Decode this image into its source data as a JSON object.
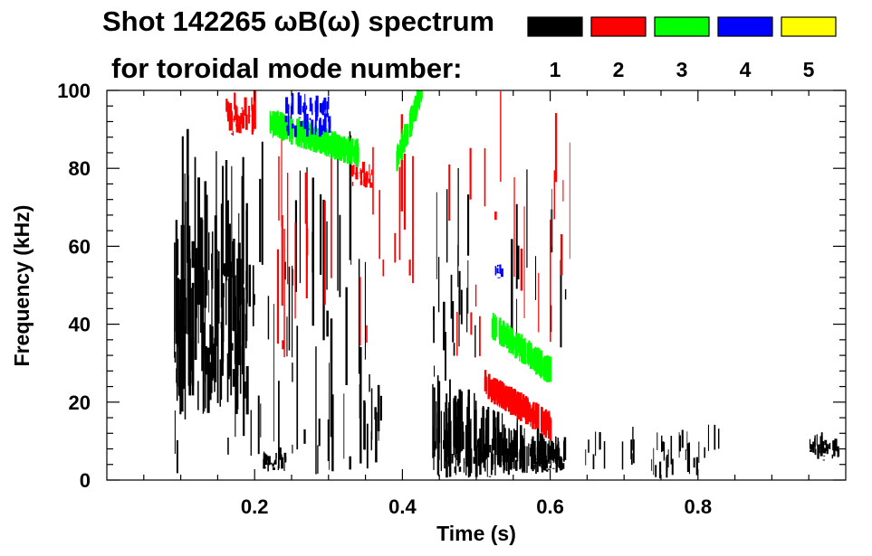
{
  "chart_data": {
    "type": "heatmap",
    "title_line1": "Shot 142265 ωB(ω) spectrum",
    "title_line2": "for toroidal mode number:",
    "xlabel": "Time (s)",
    "ylabel": "Frequency (kHz)",
    "xlim": [
      0.0,
      1.0
    ],
    "ylim": [
      0,
      100
    ],
    "x_ticks": [
      {
        "value": 0.2,
        "label": "0.2"
      },
      {
        "value": 0.4,
        "label": "0.4"
      },
      {
        "value": 0.6,
        "label": "0.6"
      },
      {
        "value": 0.8,
        "label": "0.8"
      }
    ],
    "y_ticks": [
      {
        "value": 0,
        "label": "0"
      },
      {
        "value": 20,
        "label": "20"
      },
      {
        "value": 40,
        "label": "40"
      },
      {
        "value": 60,
        "label": "60"
      },
      {
        "value": 80,
        "label": "80"
      },
      {
        "value": 100,
        "label": "100"
      }
    ],
    "legend": {
      "placement": "top-right",
      "entries": [
        {
          "label": "1",
          "color": "#000000"
        },
        {
          "label": "2",
          "color": "#ff0000"
        },
        {
          "label": "3",
          "color": "#00ff00"
        },
        {
          "label": "4",
          "color": "#0000ff"
        },
        {
          "label": "5",
          "color": "#ffff00"
        }
      ]
    },
    "grid": false,
    "features": [
      {
        "mode": "1",
        "kind": "blob",
        "x": [
          0.09,
          0.19
        ],
        "y": [
          14,
          84
        ],
        "density": 0.95
      },
      {
        "mode": "1",
        "kind": "streaks",
        "x": [
          0.09,
          0.36
        ],
        "y": [
          1,
          82
        ],
        "count": 70
      },
      {
        "mode": "1",
        "kind": "streaks",
        "x": [
          0.345,
          0.375
        ],
        "y": [
          1,
          30
        ],
        "count": 10
      },
      {
        "mode": "1",
        "kind": "band",
        "x": [
          0.44,
          0.62
        ],
        "y_start": [
          0,
          25
        ],
        "y_end": [
          2,
          10
        ],
        "density": 0.9
      },
      {
        "mode": "1",
        "kind": "streaks",
        "x": [
          0.62,
          0.83
        ],
        "y": [
          0,
          12
        ],
        "count": 40
      },
      {
        "mode": "1",
        "kind": "streaks",
        "x": [
          0.44,
          0.62
        ],
        "y": [
          20,
          75
        ],
        "count": 30
      },
      {
        "mode": "1",
        "kind": "patch",
        "x": [
          0.21,
          0.24
        ],
        "y": [
          2,
          8
        ]
      },
      {
        "mode": "1",
        "kind": "patch",
        "x": [
          0.95,
          0.99
        ],
        "y": [
          5,
          12
        ]
      },
      {
        "mode": "2",
        "kind": "chirp",
        "x": [
          0.51,
          0.6
        ],
        "y_start": 25,
        "y_end": 14
      },
      {
        "mode": "2",
        "kind": "patch",
        "x": [
          0.16,
          0.2
        ],
        "y": [
          88,
          100
        ]
      },
      {
        "mode": "2",
        "kind": "patch",
        "x": [
          0.33,
          0.36
        ],
        "y": [
          75,
          82
        ]
      },
      {
        "mode": "2",
        "kind": "streaks",
        "x": [
          0.2,
          0.63
        ],
        "y": [
          30,
          100
        ],
        "count": 45
      },
      {
        "mode": "3",
        "kind": "chirp",
        "x": [
          0.22,
          0.34
        ],
        "y_start": 92,
        "y_end": 84
      },
      {
        "mode": "3",
        "kind": "chirp",
        "x": [
          0.39,
          0.425
        ],
        "y_start": 82,
        "y_end": 100
      },
      {
        "mode": "3",
        "kind": "chirp",
        "x": [
          0.52,
          0.6
        ],
        "y_start": 40,
        "y_end": 28
      },
      {
        "mode": "4",
        "kind": "patch",
        "x": [
          0.24,
          0.3
        ],
        "y": [
          88,
          100
        ]
      },
      {
        "mode": "4",
        "kind": "patch",
        "x": [
          0.525,
          0.535
        ],
        "y": [
          52,
          57
        ]
      }
    ]
  }
}
